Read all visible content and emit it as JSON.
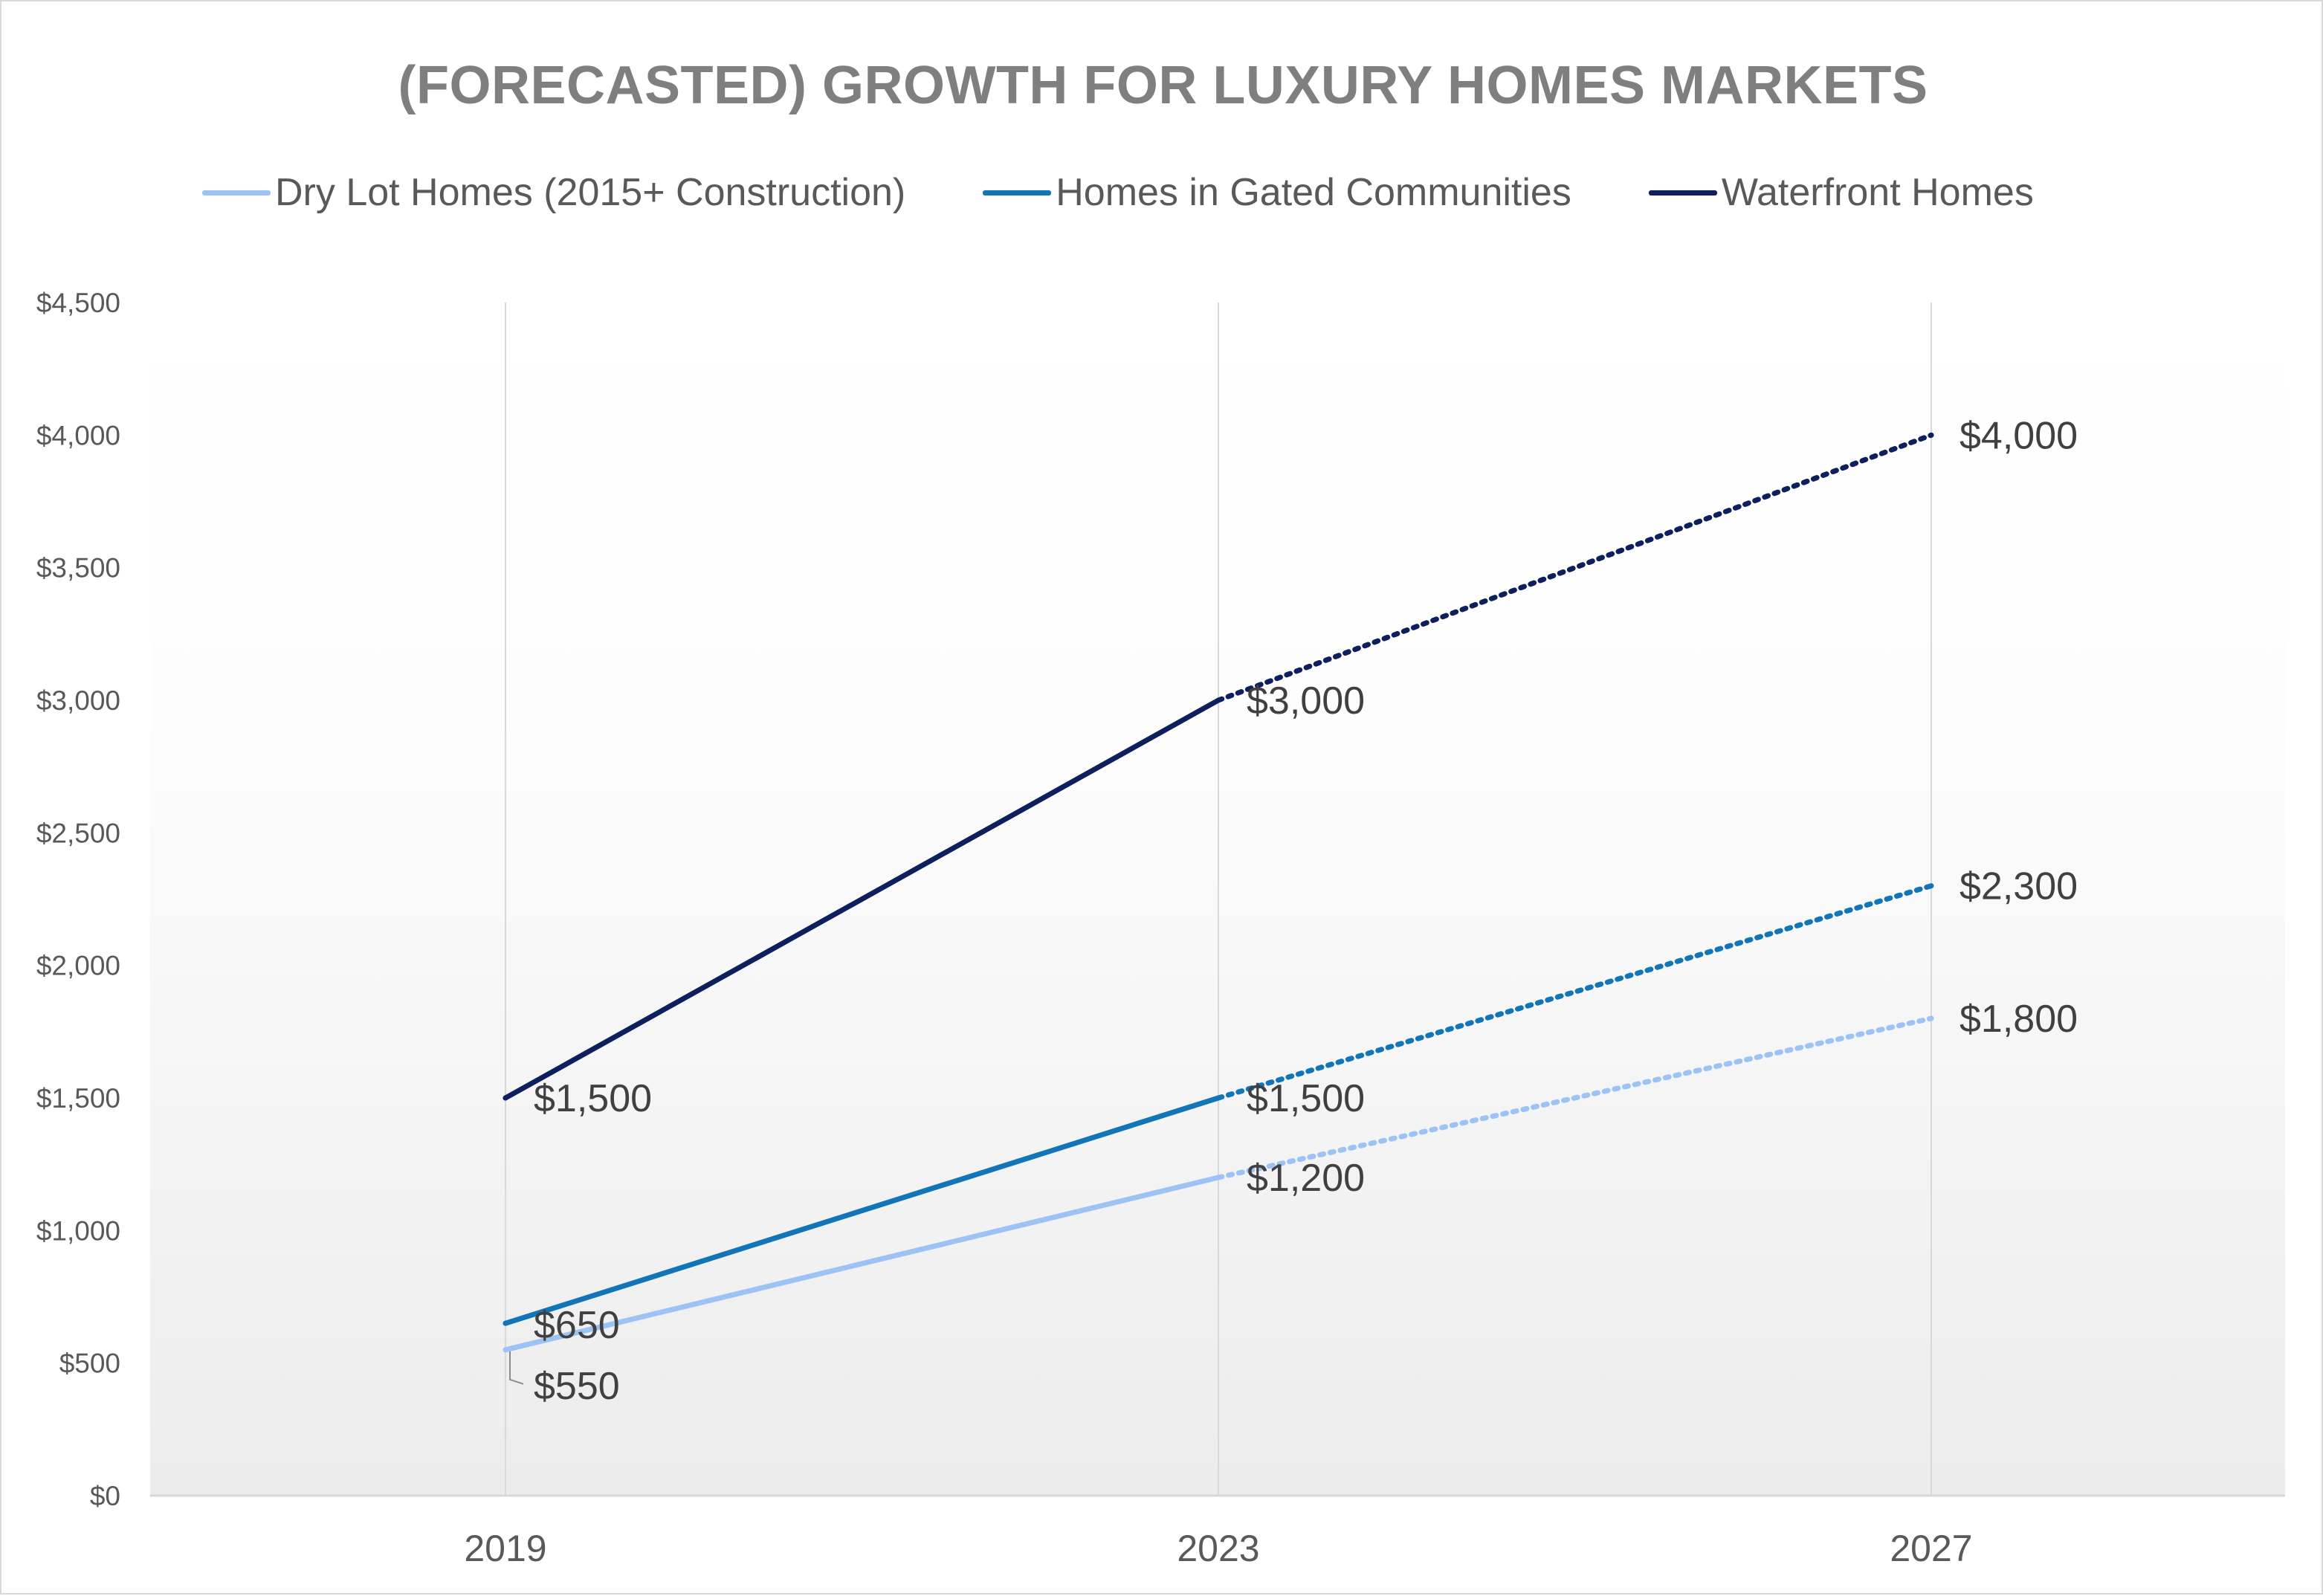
{
  "chart_data": {
    "type": "line",
    "title": "(FORECASTED) GROWTH FOR LUXURY HOMES MARKETS",
    "categories": [
      "2019",
      "2023",
      "2027"
    ],
    "ylim": [
      0,
      4500
    ],
    "y_ticks": [
      "$0",
      "$500",
      "$1,000",
      "$1,500",
      "$2,000",
      "$2,500",
      "$3,000",
      "$3,500",
      "$4,000",
      "$4,500"
    ],
    "grid": "vertical-only",
    "legend_position": "top",
    "forecast_segment": "2023-2027 drawn dotted",
    "series": [
      {
        "name": "Dry Lot Homes (2015+ Construction)",
        "values": [
          550,
          1200,
          1800
        ],
        "labels": [
          "$550",
          "$1,200",
          "$1,800"
        ],
        "color": "#9dc3f5"
      },
      {
        "name": "Homes in Gated Communities",
        "values": [
          650,
          1500,
          2300
        ],
        "labels": [
          "$650",
          "$1,500",
          "$2,300"
        ],
        "color": "#1175b8"
      },
      {
        "name": "Waterfront Homes",
        "values": [
          1500,
          3000,
          4000
        ],
        "labels": [
          "$1,500",
          "$3,000",
          "$4,000"
        ],
        "color": "#0d1f5c"
      }
    ]
  }
}
